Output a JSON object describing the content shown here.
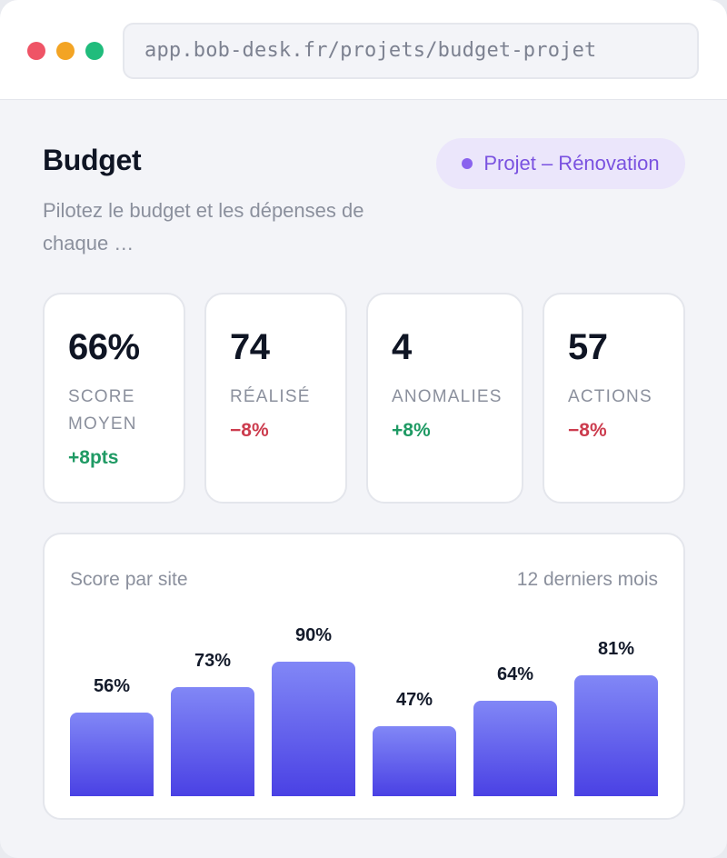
{
  "browser": {
    "url": "app.bob-desk.fr/projets/budget-projet"
  },
  "header": {
    "title": "Budget",
    "subtitle": "Pilotez le budget et les dépenses de chaque …",
    "project_badge": "Projet – Rénovation"
  },
  "stats": [
    {
      "value": "66%",
      "label": "SCORE MOYEN",
      "delta": "+8pts",
      "trend": "positive"
    },
    {
      "value": "74",
      "label": "RÉALISÉ",
      "delta": "−8%",
      "trend": "negative"
    },
    {
      "value": "4",
      "label": "ANOMALIES",
      "delta": "+8%",
      "trend": "positive"
    },
    {
      "value": "57",
      "label": "ACTIONS",
      "delta": "−8%",
      "trend": "negative"
    }
  ],
  "chart": {
    "title": "Score par site",
    "period": "12 derniers mois"
  },
  "chart_data": {
    "type": "bar",
    "title": "Score par site",
    "values": [
      56,
      73,
      90,
      47,
      64,
      81
    ],
    "labels": [
      "56%",
      "73%",
      "90%",
      "47%",
      "64%",
      "81%"
    ],
    "ylim": [
      0,
      100
    ],
    "grid": false,
    "colors": {
      "top": "#8187f6",
      "bottom": "#4a41e4"
    }
  },
  "colors": {
    "accent": "#7a52e0",
    "positive": "#1f9a64",
    "negative": "#cc3c4e"
  }
}
